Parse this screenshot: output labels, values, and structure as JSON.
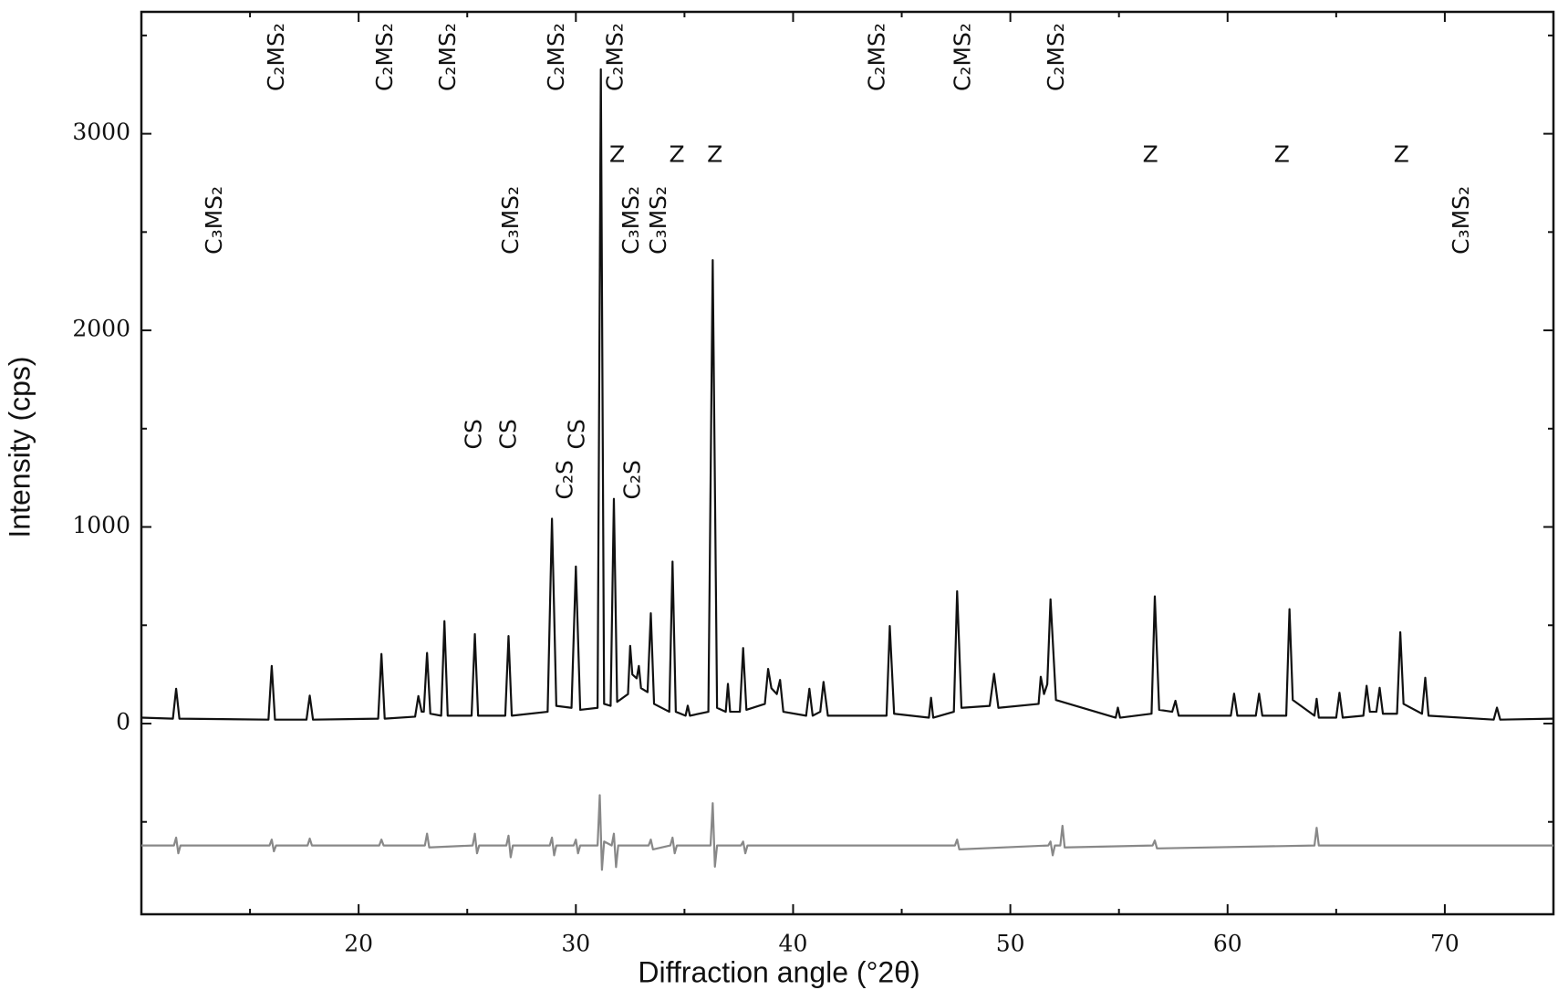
{
  "chart_data": {
    "type": "line",
    "xlabel": "Diffraction angle (°2θ)",
    "ylabel": "Intensity (cps)",
    "xlim": [
      10,
      75
    ],
    "ylim": [
      -970,
      3620
    ],
    "xticks": [
      20,
      30,
      40,
      50,
      60,
      70
    ],
    "yticks": [
      0,
      1000,
      2000,
      3000
    ],
    "xminorticks": [
      15,
      25,
      35,
      45,
      55,
      65,
      75
    ],
    "yminorticks": [
      -500,
      500,
      1500,
      2500,
      3500
    ],
    "grid": false,
    "series": [
      {
        "color": "#111111",
        "x": [
          10.0,
          11.45,
          11.6,
          11.75,
          15.85,
          16.0,
          16.15,
          17.6,
          17.75,
          17.9,
          20.9,
          21.05,
          21.2,
          22.6,
          22.75,
          22.9,
          23.0,
          23.15,
          23.3,
          23.8,
          23.95,
          24.1,
          25.2,
          25.35,
          25.5,
          26.75,
          26.9,
          27.05,
          28.7,
          28.9,
          29.1,
          29.8,
          30.0,
          30.2,
          31.0,
          31.15,
          31.3,
          31.6,
          31.75,
          31.9,
          32.4,
          32.5,
          32.6,
          32.8,
          32.9,
          33.0,
          33.3,
          33.45,
          33.6,
          34.3,
          34.45,
          34.6,
          35.05,
          35.15,
          35.25,
          36.1,
          36.3,
          36.5,
          36.9,
          37.0,
          37.1,
          37.55,
          37.7,
          37.85,
          38.7,
          38.85,
          39.0,
          39.25,
          39.4,
          39.55,
          40.6,
          40.75,
          40.9,
          41.25,
          41.4,
          41.6,
          44.3,
          44.45,
          44.65,
          46.25,
          46.35,
          46.45,
          47.4,
          47.55,
          47.75,
          49.05,
          49.25,
          49.45,
          51.3,
          51.4,
          51.55,
          51.7,
          51.85,
          52.1,
          54.85,
          54.95,
          55.05,
          56.5,
          56.65,
          56.85,
          57.45,
          57.6,
          57.75,
          60.15,
          60.3,
          60.45,
          61.3,
          61.45,
          61.6,
          62.7,
          62.85,
          63.0,
          64.0,
          64.1,
          64.2,
          65.0,
          65.15,
          65.3,
          66.25,
          66.4,
          66.55,
          66.85,
          67.0,
          67.15,
          67.8,
          67.95,
          68.1,
          68.95,
          69.1,
          69.25,
          72.25,
          72.4,
          72.55,
          75.0
        ],
        "values": [
          30,
          25,
          177,
          25,
          20,
          293,
          20,
          20,
          142,
          20,
          25,
          354,
          25,
          35,
          140,
          60,
          60,
          359,
          50,
          40,
          521,
          40,
          40,
          455,
          40,
          40,
          445,
          40,
          60,
          1042,
          90,
          80,
          799,
          70,
          80,
          3328,
          100,
          90,
          1143,
          110,
          150,
          395,
          250,
          230,
          293,
          180,
          160,
          561,
          100,
          60,
          824,
          60,
          40,
          91,
          40,
          60,
          2357,
          80,
          60,
          202,
          60,
          60,
          384,
          70,
          100,
          278,
          180,
          150,
          222,
          60,
          40,
          177,
          40,
          60,
          212,
          40,
          40,
          496,
          50,
          30,
          131,
          30,
          60,
          673,
          80,
          90,
          253,
          80,
          100,
          238,
          150,
          200,
          632,
          120,
          30,
          81,
          30,
          50,
          647,
          70,
          60,
          116,
          40,
          40,
          152,
          40,
          40,
          152,
          40,
          40,
          582,
          120,
          40,
          126,
          30,
          30,
          157,
          30,
          40,
          192,
          60,
          60,
          182,
          50,
          50,
          465,
          100,
          50,
          233,
          40,
          20,
          81,
          20,
          25
        ]
      },
      {
        "color": "#888888",
        "x": [
          10,
          11.5,
          11.6,
          11.7,
          11.8,
          15.9,
          16.0,
          16.1,
          16.2,
          17.65,
          17.75,
          17.85,
          20.95,
          21.05,
          21.15,
          23.05,
          23.15,
          23.25,
          25.25,
          25.35,
          25.45,
          25.55,
          26.8,
          26.9,
          27.0,
          27.1,
          28.8,
          28.9,
          29.0,
          29.1,
          29.9,
          30.0,
          30.1,
          30.2,
          31.0,
          31.1,
          31.2,
          31.3,
          31.65,
          31.75,
          31.85,
          31.95,
          33.35,
          33.45,
          33.55,
          34.35,
          34.45,
          34.55,
          34.65,
          36.2,
          36.3,
          36.4,
          36.5,
          37.6,
          37.7,
          37.8,
          37.9,
          47.45,
          47.55,
          47.65,
          51.75,
          51.85,
          51.95,
          52.05,
          52.3,
          52.4,
          52.5,
          56.55,
          56.65,
          56.75,
          64.0,
          64.1,
          64.2,
          75
        ],
        "values": [
          -620,
          -620,
          -580,
          -660,
          -620,
          -620,
          -590,
          -650,
          -620,
          -620,
          -585,
          -620,
          -620,
          -590,
          -620,
          -620,
          -560,
          -630,
          -620,
          -560,
          -660,
          -620,
          -620,
          -570,
          -680,
          -620,
          -620,
          -580,
          -670,
          -620,
          -620,
          -590,
          -660,
          -620,
          -620,
          -364,
          -744,
          -600,
          -620,
          -560,
          -730,
          -620,
          -620,
          -590,
          -640,
          -620,
          -580,
          -660,
          -620,
          -620,
          -405,
          -728,
          -620,
          -620,
          -600,
          -660,
          -620,
          -620,
          -590,
          -640,
          -620,
          -600,
          -670,
          -620,
          -620,
          -520,
          -630,
          -620,
          -595,
          -635,
          -620,
          -530,
          -620,
          -620
        ]
      }
    ],
    "annotations": [
      {
        "text": "C₃MS₂",
        "x": 13.4,
        "y": 2560,
        "orientation": "vertical"
      },
      {
        "text": "C₃MS₂",
        "x": 27.05,
        "y": 2560,
        "orientation": "vertical"
      },
      {
        "text": "C₃MS₂",
        "x": 32.6,
        "y": 2560,
        "orientation": "vertical"
      },
      {
        "text": "C₃MS₂",
        "x": 33.85,
        "y": 2560,
        "orientation": "vertical"
      },
      {
        "text": "C₃MS₂",
        "x": 70.8,
        "y": 2560,
        "orientation": "vertical"
      },
      {
        "text": "C₂MS₂",
        "x": 16.25,
        "y": 3390,
        "orientation": "vertical"
      },
      {
        "text": "C₂MS₂",
        "x": 21.25,
        "y": 3390,
        "orientation": "vertical"
      },
      {
        "text": "C₂MS₂",
        "x": 24.15,
        "y": 3390,
        "orientation": "vertical"
      },
      {
        "text": "C₂MS₂",
        "x": 29.15,
        "y": 3390,
        "orientation": "vertical"
      },
      {
        "text": "C₂MS₂",
        "x": 31.85,
        "y": 3390,
        "orientation": "vertical"
      },
      {
        "text": "C₂MS₂",
        "x": 43.9,
        "y": 3390,
        "orientation": "vertical"
      },
      {
        "text": "C₂MS₂",
        "x": 47.85,
        "y": 3390,
        "orientation": "vertical"
      },
      {
        "text": "C₂MS₂",
        "x": 52.15,
        "y": 3390,
        "orientation": "vertical"
      },
      {
        "text": "Z",
        "x": 31.9,
        "y": 2888,
        "orientation": "horizontal"
      },
      {
        "text": "Z",
        "x": 34.65,
        "y": 2888,
        "orientation": "horizontal"
      },
      {
        "text": "Z",
        "x": 36.4,
        "y": 2888,
        "orientation": "horizontal"
      },
      {
        "text": "Z",
        "x": 56.45,
        "y": 2888,
        "orientation": "horizontal"
      },
      {
        "text": "Z",
        "x": 62.5,
        "y": 2888,
        "orientation": "horizontal"
      },
      {
        "text": "Z",
        "x": 68.0,
        "y": 2888,
        "orientation": "horizontal"
      },
      {
        "text": "CS",
        "x": 25.35,
        "y": 1472,
        "orientation": "vertical"
      },
      {
        "text": "CS",
        "x": 26.95,
        "y": 1472,
        "orientation": "vertical"
      },
      {
        "text": "CS",
        "x": 30.1,
        "y": 1472,
        "orientation": "vertical"
      },
      {
        "text": "C₂S",
        "x": 29.55,
        "y": 1240,
        "orientation": "vertical"
      },
      {
        "text": "C₂S",
        "x": 32.65,
        "y": 1240,
        "orientation": "vertical"
      }
    ]
  }
}
